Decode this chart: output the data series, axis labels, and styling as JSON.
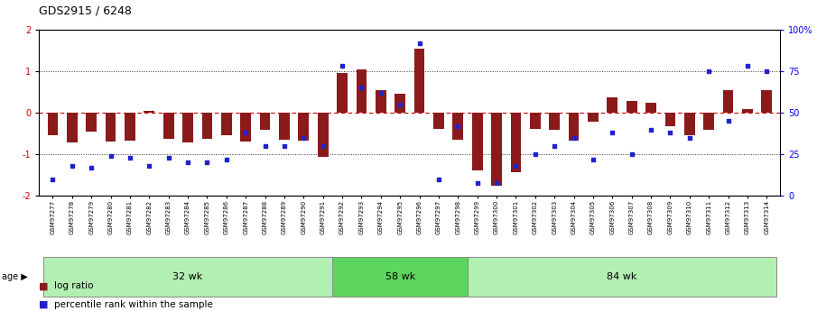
{
  "title": "GDS2915 / 6248",
  "samples": [
    "GSM97277",
    "GSM97278",
    "GSM97279",
    "GSM97280",
    "GSM97281",
    "GSM97282",
    "GSM97283",
    "GSM97284",
    "GSM97285",
    "GSM97286",
    "GSM97287",
    "GSM97288",
    "GSM97289",
    "GSM97290",
    "GSM97291",
    "GSM97292",
    "GSM97293",
    "GSM97294",
    "GSM97295",
    "GSM97296",
    "GSM97297",
    "GSM97298",
    "GSM97299",
    "GSM97300",
    "GSM97301",
    "GSM97302",
    "GSM97303",
    "GSM97304",
    "GSM97305",
    "GSM97306",
    "GSM97307",
    "GSM97308",
    "GSM97309",
    "GSM97310",
    "GSM97311",
    "GSM97312",
    "GSM97313",
    "GSM97314"
  ],
  "log_ratio": [
    -0.55,
    -0.72,
    -0.45,
    -0.7,
    -0.68,
    0.05,
    -0.62,
    -0.72,
    -0.62,
    -0.55,
    -0.7,
    -0.4,
    -0.65,
    -0.68,
    -1.05,
    0.95,
    1.05,
    0.55,
    0.45,
    1.55,
    -0.38,
    -0.65,
    -1.38,
    -1.75,
    -1.42,
    -0.38,
    -0.42,
    -0.68,
    -0.22,
    0.38,
    0.28,
    0.25,
    -0.32,
    -0.55,
    -0.42,
    0.55,
    0.08,
    0.55
  ],
  "percentile": [
    10,
    18,
    17,
    24,
    23,
    18,
    23,
    20,
    20,
    22,
    38,
    30,
    30,
    35,
    30,
    78,
    65,
    62,
    55,
    92,
    10,
    42,
    8,
    8,
    18,
    25,
    30,
    35,
    22,
    38,
    25,
    40,
    38,
    35,
    75,
    45,
    78,
    75
  ],
  "groups": [
    {
      "label": "32 wk",
      "start": 0,
      "end": 15,
      "color": "#b2f0b2"
    },
    {
      "label": "58 wk",
      "start": 15,
      "end": 22,
      "color": "#5cd65c"
    },
    {
      "label": "84 wk",
      "start": 22,
      "end": 38,
      "color": "#b2f0b2"
    }
  ],
  "bar_color": "#8B1A1A",
  "dot_color": "#2222CC",
  "hline_color": "#CC0000",
  "dotted_color": "#333333",
  "bar_width": 0.55,
  "ylim": [
    -2,
    2
  ],
  "yticks_left": [
    -2,
    -1,
    0,
    1,
    2
  ],
  "yticks_right": [
    0,
    25,
    50,
    75,
    100
  ],
  "ytick_right_labels": [
    "0",
    "25",
    "50",
    "75",
    "100%"
  ]
}
